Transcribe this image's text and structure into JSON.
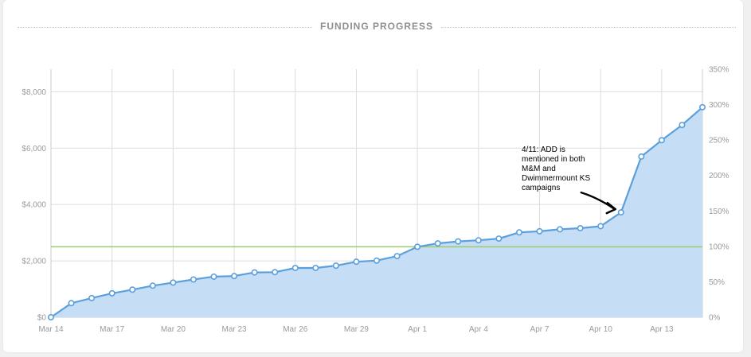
{
  "chart_data": {
    "type": "area",
    "title": "FUNDING PROGRESS",
    "x_categories": [
      "Mar 14",
      "Mar 15",
      "Mar 16",
      "Mar 17",
      "Mar 18",
      "Mar 19",
      "Mar 20",
      "Mar 21",
      "Mar 22",
      "Mar 23",
      "Mar 24",
      "Mar 25",
      "Mar 26",
      "Mar 27",
      "Mar 28",
      "Mar 29",
      "Mar 30",
      "Mar 31",
      "Apr 1",
      "Apr 2",
      "Apr 3",
      "Apr 4",
      "Apr 5",
      "Apr 6",
      "Apr 7",
      "Apr 8",
      "Apr 9",
      "Apr 10",
      "Apr 11",
      "Apr 12",
      "Apr 13",
      "Apr 14",
      "Apr 15"
    ],
    "x_tick_labels": [
      "Mar 14",
      "Mar 17",
      "Mar 20",
      "Mar 23",
      "Mar 26",
      "Mar 29",
      "Apr 1",
      "Apr 4",
      "Apr 7",
      "Apr 10",
      "Apr 13"
    ],
    "x_tick_indices": [
      0,
      3,
      6,
      9,
      12,
      15,
      18,
      21,
      24,
      27,
      30
    ],
    "series": [
      {
        "name": "Funding",
        "values": [
          0,
          500,
          680,
          850,
          980,
          1120,
          1230,
          1340,
          1440,
          1460,
          1590,
          1600,
          1750,
          1750,
          1830,
          1970,
          2010,
          2170,
          2500,
          2620,
          2690,
          2730,
          2790,
          3010,
          3050,
          3120,
          3160,
          3230,
          3720,
          5700,
          6280,
          6820,
          7450
        ]
      }
    ],
    "left_axis": {
      "min": 0,
      "max": 8800,
      "ticks": [
        0,
        2000,
        4000,
        6000,
        8000
      ],
      "tick_labels": [
        "$0",
        "$2,000",
        "$4,000",
        "$6,000",
        "$8,000"
      ]
    },
    "right_axis": {
      "min": 0,
      "max": 350,
      "ticks": [
        0,
        50,
        100,
        150,
        200,
        250,
        300,
        350
      ],
      "tick_labels": [
        "0%",
        "50%",
        "100%",
        "150%",
        "200%",
        "250%",
        "300%",
        "350%"
      ]
    },
    "goal": {
      "value": 2500,
      "color": "#9ccc6a"
    },
    "colors": {
      "line": "#5ba0dc",
      "fill": "#c5ddf5",
      "marker_fill": "#ffffff",
      "grid": "#dcdcdc",
      "axis": "#cccccc"
    },
    "annotation": {
      "lines": [
        "4/11: ADD is",
        "mentioned in both",
        "M&M and",
        "Dwimmermount KS",
        "campaigns"
      ],
      "target_index": 28
    }
  }
}
